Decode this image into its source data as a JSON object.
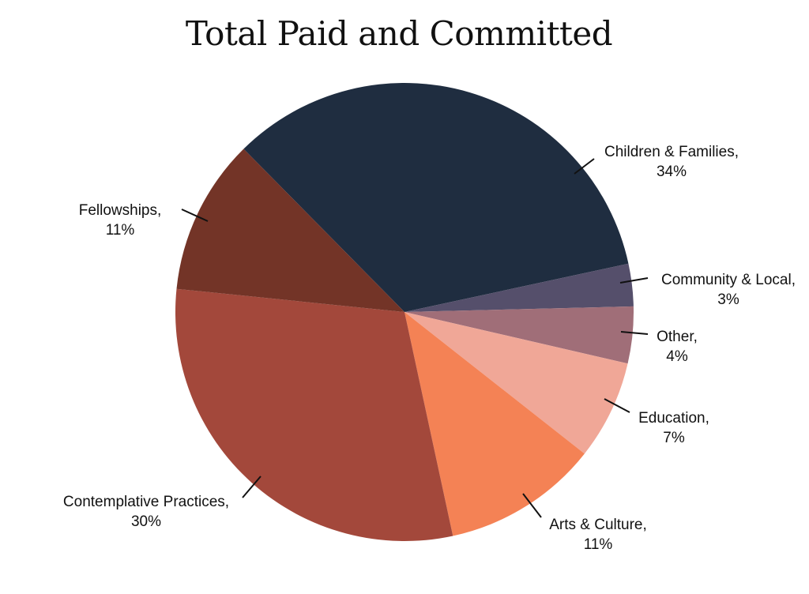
{
  "chart_data": {
    "type": "pie",
    "title": "Total Paid and Committed",
    "slices": [
      {
        "label": "Children & Families,",
        "pct_label": "34%",
        "value": 34,
        "color": "#1f2d40"
      },
      {
        "label": "Community & Local,",
        "pct_label": "3%",
        "value": 3,
        "color": "#554f6b"
      },
      {
        "label": "Other,",
        "pct_label": "4%",
        "value": 4,
        "color": "#a06e78"
      },
      {
        "label": "Education,",
        "pct_label": "7%",
        "value": 7,
        "color": "#f0a797"
      },
      {
        "label": "Arts & Culture,",
        "pct_label": "11%",
        "value": 11,
        "color": "#f48255"
      },
      {
        "label": "Contemplative Practices,",
        "pct_label": "30%",
        "value": 30,
        "color": "#a3483b"
      },
      {
        "label": "Fellowships,",
        "pct_label": "11%",
        "value": 11,
        "color": "#733427"
      }
    ]
  }
}
